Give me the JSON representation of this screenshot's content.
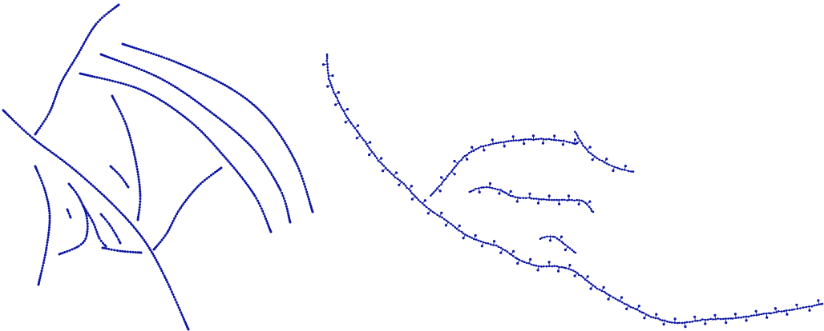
{
  "figure": {
    "background_color": "#ffffff",
    "stroke_color": "#1f2bb0",
    "dot_color": "#0a14a0",
    "left_panel": {
      "description_hidden": "",
      "strand_count": 17,
      "marker": "dot"
    },
    "right_panel": {
      "strand_count": 6,
      "marker": "dot-with-side-branches"
    }
  }
}
